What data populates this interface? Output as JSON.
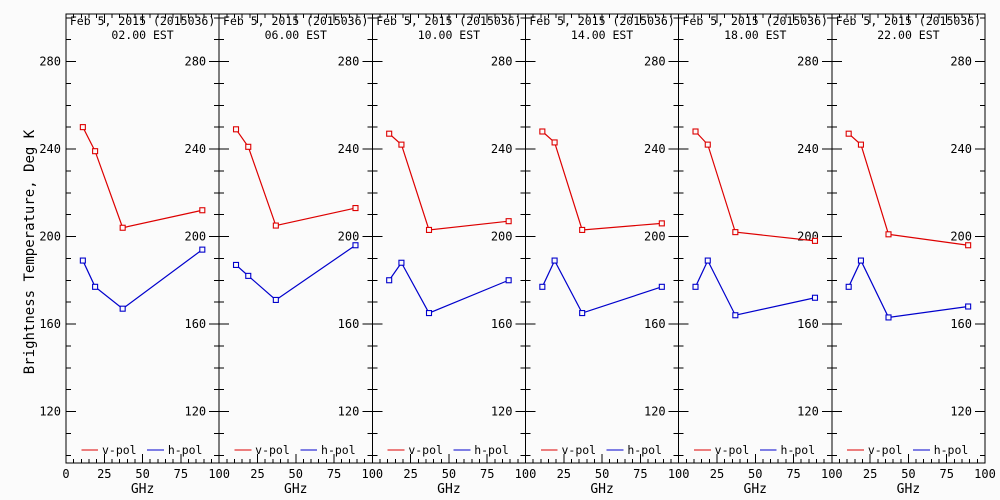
{
  "figure": {
    "ylabel": "Brightness Temperature, Deg K",
    "xlabel": "GHz",
    "legend": {
      "v_label": "v-pol",
      "h_label": "h-pol"
    },
    "colors": {
      "v_pol": "#dd0000",
      "h_pol": "#0000cc",
      "axis": "#000000",
      "background": "#fbfbfb"
    }
  },
  "chart_data": [
    {
      "type": "line",
      "title": "Feb  5, 2015 (2015036)",
      "subtitle": "02.00 EST",
      "x": [
        11,
        19,
        37,
        89
      ],
      "xlabel": "GHz",
      "xlim": [
        0,
        100
      ],
      "ylim": [
        97,
        302
      ],
      "xticks": [
        0,
        25,
        50,
        75,
        100
      ],
      "yticks": [
        120,
        160,
        200,
        240,
        280
      ],
      "legend_position": "bottom",
      "series": [
        {
          "name": "v-pol",
          "color": "#dd0000",
          "values": [
            250,
            239,
            204,
            212
          ]
        },
        {
          "name": "h-pol",
          "color": "#0000cc",
          "values": [
            189,
            177,
            167,
            194
          ]
        }
      ]
    },
    {
      "type": "line",
      "title": "Feb  5, 2015 (2015036)",
      "subtitle": "06.00 EST",
      "x": [
        11,
        19,
        37,
        89
      ],
      "xlabel": "GHz",
      "xlim": [
        0,
        100
      ],
      "ylim": [
        97,
        302
      ],
      "xticks": [
        0,
        25,
        50,
        75,
        100
      ],
      "yticks": [
        120,
        160,
        200,
        240,
        280
      ],
      "legend_position": "bottom",
      "series": [
        {
          "name": "v-pol",
          "color": "#dd0000",
          "values": [
            249,
            241,
            205,
            213
          ]
        },
        {
          "name": "h-pol",
          "color": "#0000cc",
          "values": [
            187,
            182,
            171,
            196
          ]
        }
      ]
    },
    {
      "type": "line",
      "title": "Feb  5, 2015 (2015036)",
      "subtitle": "10.00 EST",
      "x": [
        11,
        19,
        37,
        89
      ],
      "xlabel": "GHz",
      "xlim": [
        0,
        100
      ],
      "ylim": [
        97,
        302
      ],
      "xticks": [
        0,
        25,
        50,
        75,
        100
      ],
      "yticks": [
        120,
        160,
        200,
        240,
        280
      ],
      "legend_position": "bottom",
      "series": [
        {
          "name": "v-pol",
          "color": "#dd0000",
          "values": [
            247,
            242,
            203,
            207
          ]
        },
        {
          "name": "h-pol",
          "color": "#0000cc",
          "values": [
            180,
            188,
            165,
            180
          ]
        }
      ]
    },
    {
      "type": "line",
      "title": "Feb  5, 2015 (2015036)",
      "subtitle": "14.00 EST",
      "x": [
        11,
        19,
        37,
        89
      ],
      "xlabel": "GHz",
      "xlim": [
        0,
        100
      ],
      "ylim": [
        97,
        302
      ],
      "xticks": [
        0,
        25,
        50,
        75,
        100
      ],
      "yticks": [
        120,
        160,
        200,
        240,
        280
      ],
      "legend_position": "bottom",
      "series": [
        {
          "name": "v-pol",
          "color": "#dd0000",
          "values": [
            248,
            243,
            203,
            206
          ]
        },
        {
          "name": "h-pol",
          "color": "#0000cc",
          "values": [
            177,
            189,
            165,
            177
          ]
        }
      ]
    },
    {
      "type": "line",
      "title": "Feb  5, 2015 (2015036)",
      "subtitle": "18.00 EST",
      "x": [
        11,
        19,
        37,
        89
      ],
      "xlabel": "GHz",
      "xlim": [
        0,
        100
      ],
      "ylim": [
        97,
        302
      ],
      "xticks": [
        0,
        25,
        50,
        75,
        100
      ],
      "yticks": [
        120,
        160,
        200,
        240,
        280
      ],
      "legend_position": "bottom",
      "series": [
        {
          "name": "v-pol",
          "color": "#dd0000",
          "values": [
            248,
            242,
            202,
            198
          ]
        },
        {
          "name": "h-pol",
          "color": "#0000cc",
          "values": [
            177,
            189,
            164,
            172
          ]
        }
      ]
    },
    {
      "type": "line",
      "title": "Feb  5, 2015 (2015036)",
      "subtitle": "22.00 EST",
      "x": [
        11,
        19,
        37,
        89
      ],
      "xlabel": "GHz",
      "xlim": [
        0,
        100
      ],
      "ylim": [
        97,
        302
      ],
      "xticks": [
        0,
        25,
        50,
        75,
        100
      ],
      "yticks": [
        120,
        160,
        200,
        240,
        280
      ],
      "legend_position": "bottom",
      "series": [
        {
          "name": "v-pol",
          "color": "#dd0000",
          "values": [
            247,
            242,
            201,
            196
          ]
        },
        {
          "name": "h-pol",
          "color": "#0000cc",
          "values": [
            177,
            189,
            163,
            168
          ]
        }
      ]
    }
  ]
}
